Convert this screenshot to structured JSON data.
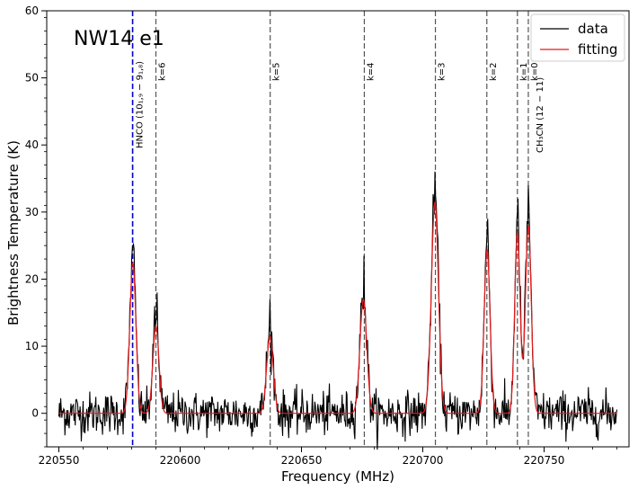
{
  "chart_data": {
    "type": "line",
    "title": "",
    "panel_label": "NW14 e1",
    "xlabel": "Frequency (MHz)",
    "ylabel": "Brightness Temperature (K)",
    "xlim": [
      220545,
      220785
    ],
    "ylim": [
      -5,
      60
    ],
    "xticks": [
      220550,
      220600,
      220650,
      220700,
      220750
    ],
    "yticks": [
      0,
      10,
      20,
      30,
      40,
      50,
      60
    ],
    "legend": {
      "placement": "top-right",
      "entries": [
        "data",
        "fitting"
      ]
    },
    "colors": {
      "data": "#000000",
      "fitting": "#e41a1c",
      "hnco_line": "#0000cc",
      "k_lines": "#555555"
    },
    "peaks": [
      {
        "x": 220580.5,
        "amp": 22.5,
        "sigma": 1.25
      },
      {
        "x": 220590.0,
        "amp": 13.0,
        "sigma": 1.25
      },
      {
        "x": 220637.0,
        "amp": 11.5,
        "sigma": 1.35
      },
      {
        "x": 220675.5,
        "amp": 17.0,
        "sigma": 1.4
      },
      {
        "x": 220705.0,
        "amp": 31.5,
        "sigma": 1.45
      },
      {
        "x": 220726.5,
        "amp": 24.5,
        "sigma": 1.2
      },
      {
        "x": 220739.0,
        "amp": 27.0,
        "sigma": 1.1
      },
      {
        "x": 220743.5,
        "amp": 28.0,
        "sigma": 1.2
      }
    ],
    "data_range": [
      220550,
      220780
    ],
    "noise_rms": 1.6,
    "data_extra_peaks": [
      {
        "x": 220581.0,
        "y": 24.5
      },
      {
        "x": 220590.5,
        "y": 18.0
      },
      {
        "x": 220637.0,
        "y": 17.0
      },
      {
        "x": 220675.8,
        "y": 23.5
      },
      {
        "x": 220705.2,
        "y": 32.5
      },
      {
        "x": 220726.8,
        "y": 29.0
      },
      {
        "x": 220739.2,
        "y": 32.0
      },
      {
        "x": 220743.6,
        "y": 34.0
      }
    ],
    "vlines": [
      {
        "x": 220580.4,
        "label": "HNCO (10₁,₉ − 9₁,₈)",
        "style": "blue"
      },
      {
        "x": 220590.0,
        "label": "k=6",
        "style": "gray"
      },
      {
        "x": 220637.1,
        "label": "k=5",
        "style": "gray"
      },
      {
        "x": 220675.9,
        "label": "k=4",
        "style": "gray"
      },
      {
        "x": 220705.2,
        "label": "k=3",
        "style": "gray"
      },
      {
        "x": 220726.4,
        "label": "k=2",
        "style": "gray"
      },
      {
        "x": 220739.0,
        "label": "k=1",
        "style": "gray"
      },
      {
        "x": 220743.5,
        "label": "k=0",
        "style": "gray"
      },
      {
        "x": 220743.5,
        "label": "CH₃CN (12 − 11)",
        "style": "label-only"
      }
    ]
  }
}
